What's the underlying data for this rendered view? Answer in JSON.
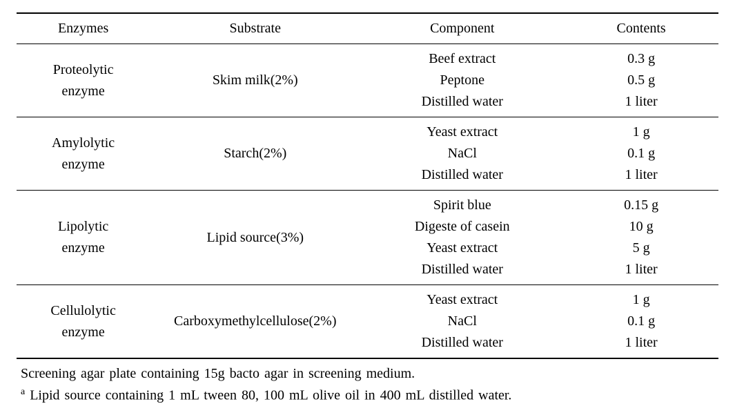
{
  "table": {
    "headers": [
      "Enzymes",
      "Substrate",
      "Component",
      "Contents"
    ],
    "rows": [
      {
        "enzyme": "Proteolytic\nenzyme",
        "substrate": "Skim milk(2%)",
        "component": "Beef extract\nPeptone\nDistilled water",
        "contents": "0.3 g\n0.5 g\n1 liter"
      },
      {
        "enzyme": "Amylolytic\nenzyme",
        "substrate": "Starch(2%)",
        "component": "Yeast extract\nNaCl\nDistilled water",
        "contents": "1 g\n0.1 g\n1 liter"
      },
      {
        "enzyme": "Lipolytic\nenzyme",
        "substrate": "Lipid source(3%)",
        "component": "Spirit blue\nDigeste of casein\nYeast extract\nDistilled water",
        "contents": "0.15 g\n10 g\n5 g\n1 liter"
      },
      {
        "enzyme": "Cellulolytic\nenzyme",
        "substrate": "Carboxymethylcellulose(2%)",
        "component": "Yeast extract\nNaCl\nDistilled water",
        "contents": "1 g\n0.1 g\n1 liter"
      }
    ]
  },
  "footnotes": {
    "line1": "Screening agar plate containing 15g bacto agar in screening medium.",
    "line2_sup": "a",
    "line2_text": " Lipid source containing 1 mL tween 80, 100 mL olive oil in 400 mL distilled water."
  },
  "style": {
    "font_family": "Times New Roman",
    "font_size_pt": 15,
    "text_color": "#000000",
    "background_color": "#ffffff",
    "border_heavy": "2px solid #000",
    "border_light": "1px solid #000"
  }
}
